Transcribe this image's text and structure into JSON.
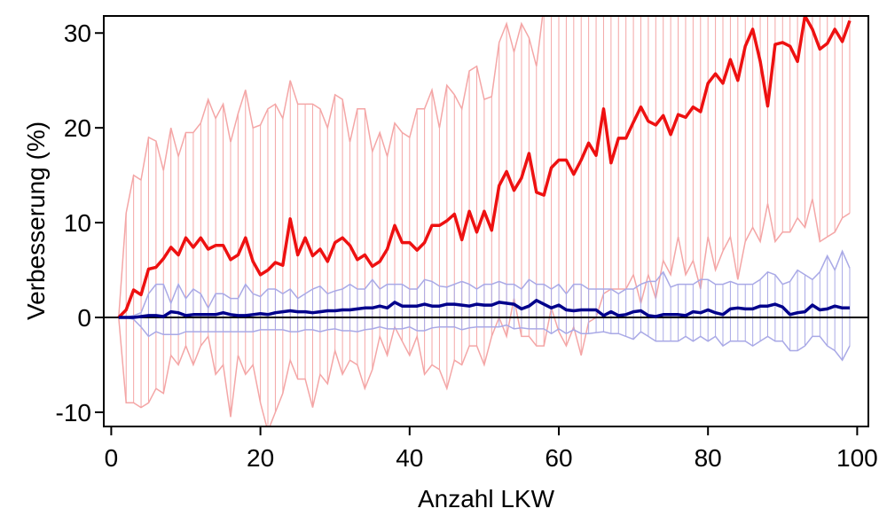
{
  "chart_data": {
    "type": "line",
    "title": "",
    "xlabel": "Anzahl LKW",
    "ylabel": "Verbesserung (%)",
    "xlim": [
      -1,
      101.5
    ],
    "ylim": [
      -11.5,
      31.8
    ],
    "xticks": [
      0,
      20,
      40,
      60,
      80,
      100
    ],
    "yticks": [
      -10,
      0,
      10,
      20,
      30
    ],
    "xtick_labels": [
      "0",
      "20",
      "40",
      "60",
      "80",
      "100"
    ],
    "ytick_labels": [
      "-10",
      "0",
      "10",
      "20",
      "30"
    ],
    "grid": false,
    "legend": "none",
    "reference_line_y": 0,
    "colors": {
      "red_line": "#ee1111",
      "red_band": "#f4a6a6",
      "blue_line": "#00008b",
      "blue_band": "#a9a9e6",
      "zero_line": "#000000"
    },
    "x_start": 1,
    "x_step": 1,
    "series": [
      {
        "values": [
          0,
          0.8,
          2.9,
          2.4,
          5.1,
          5.3,
          6.2,
          7.4,
          6.6,
          8.4,
          7.4,
          8.4,
          7.2,
          7.6,
          7.6,
          6.1,
          6.6,
          8.4,
          5.9,
          4.5,
          5.0,
          5.8,
          5.5,
          10.4,
          6.6,
          8.4,
          6.5,
          7.2,
          5.9,
          7.9,
          8.4,
          7.6,
          6.1,
          6.6,
          5.4,
          5.9,
          7.2,
          9.7,
          7.9,
          7.9,
          7.1,
          7.9,
          9.7,
          9.7,
          10.2,
          10.9,
          8.2,
          11.2,
          9.0,
          11.2,
          9.2,
          13.9,
          15.4,
          13.4,
          14.7,
          17.3,
          13.2,
          12.9,
          15.8,
          16.6,
          16.6,
          15.1,
          16.6,
          18.4,
          17.1,
          22.0,
          16.3,
          18.9,
          18.9,
          20.6,
          22.2,
          20.7,
          20.3,
          21.3,
          19.3,
          21.4,
          21.1,
          22.2,
          21.7,
          24.7,
          25.7,
          24.7,
          27.2,
          25.0,
          28.6,
          30.4,
          27.0,
          22.3,
          28.8,
          29.0,
          28.6,
          27.0,
          31.8,
          30.4,
          28.3,
          28.9,
          30.4,
          29.1,
          31.3
        ],
        "band_upper": [
          0,
          11,
          15,
          14.5,
          19,
          18.6,
          15.5,
          20,
          17,
          19.5,
          19.5,
          20.5,
          23,
          21,
          22.5,
          18.5,
          21.5,
          24,
          20,
          20.3,
          22,
          22.5,
          21,
          25,
          22.5,
          22.5,
          22.5,
          22,
          20,
          23.5,
          23,
          18.5,
          22,
          22,
          17.5,
          19.5,
          17,
          20.5,
          19.5,
          19,
          22,
          22,
          24,
          20,
          24.5,
          23.5,
          22,
          26,
          26.5,
          23,
          23.3,
          29,
          31,
          28,
          31,
          29.5,
          26.5,
          33,
          33,
          33,
          33,
          33,
          33,
          33,
          33,
          33,
          33,
          33,
          33,
          33,
          33,
          33,
          33,
          33,
          33,
          33,
          33,
          33,
          33,
          33,
          33,
          33,
          33,
          33,
          33,
          33,
          33,
          33,
          33,
          33,
          33,
          33,
          33,
          33,
          33,
          33,
          33,
          33,
          33
        ],
        "band_lower": [
          0,
          -9,
          -9,
          -9.5,
          -9,
          -7.5,
          -8,
          -4,
          -5,
          -3,
          -5,
          -3,
          -2,
          -6,
          -5,
          -10.5,
          -4,
          -6,
          -5,
          -9,
          -12,
          -10,
          -8,
          -4.5,
          -6.5,
          -6.5,
          -9.5,
          -6,
          -7,
          -3.5,
          -6,
          -4.5,
          -5,
          -7.5,
          -5.5,
          -2,
          -4,
          -1,
          -2.5,
          -4,
          -2,
          -6,
          -5,
          -5.5,
          -7.5,
          -4.5,
          -5,
          -3,
          -3,
          -5,
          -2,
          0,
          -2,
          2,
          -2,
          -2,
          -3,
          -3,
          1,
          -1.5,
          -3,
          -1,
          -4,
          -0.5,
          0,
          2.5,
          3,
          3,
          3,
          4.5,
          1.5,
          4.5,
          2,
          6,
          4.5,
          8.5,
          4.5,
          6,
          3,
          8.5,
          5,
          7,
          8.5,
          4,
          8,
          9.5,
          8,
          12,
          8,
          9,
          9,
          10.5,
          9.5,
          12.5,
          8,
          8.5,
          9,
          10.5,
          11
        ]
      },
      {
        "values": [
          0,
          0,
          0,
          0.1,
          0.2,
          0.2,
          0.1,
          0.6,
          0.5,
          0.2,
          0.3,
          0.3,
          0.3,
          0.3,
          0.5,
          0.3,
          0.2,
          0.2,
          0.3,
          0.4,
          0.3,
          0.5,
          0.6,
          0.7,
          0.6,
          0.6,
          0.5,
          0.6,
          0.7,
          0.7,
          0.8,
          0.8,
          0.9,
          1.0,
          1.0,
          1.2,
          1.0,
          1.6,
          1.2,
          1.2,
          1.2,
          1.4,
          1.2,
          1.2,
          1.4,
          1.4,
          1.3,
          1.2,
          1.4,
          1.3,
          1.3,
          1.6,
          1.5,
          1.4,
          0.9,
          1.2,
          1.8,
          1.4,
          1.0,
          1.3,
          0.8,
          0.7,
          0.8,
          0.8,
          0.8,
          0.2,
          0.6,
          0.2,
          0.3,
          0.6,
          0.7,
          0.2,
          0.1,
          0.3,
          0.3,
          0.3,
          0.2,
          0.6,
          0.5,
          0.8,
          0.5,
          0.3,
          0.9,
          1.0,
          0.9,
          0.9,
          1.2,
          1.2,
          1.4,
          1.1,
          0.3,
          0.5,
          0.6,
          1.3,
          0.8,
          0.9,
          1.2,
          1.0,
          1.0
        ],
        "band_upper": [
          0,
          0,
          0.2,
          0.5,
          2.5,
          3.5,
          3.5,
          1.5,
          3.5,
          2,
          3,
          2.5,
          1,
          2.5,
          2.5,
          2,
          2,
          3.5,
          2.5,
          2.2,
          3,
          3,
          2.5,
          3,
          2,
          2.5,
          3,
          3.3,
          2.5,
          2.8,
          3,
          3.5,
          3,
          3,
          4,
          3,
          3.5,
          3.5,
          3.5,
          3,
          3,
          4,
          3.8,
          3.3,
          3.2,
          3.5,
          3.8,
          3.5,
          3,
          3.5,
          3.5,
          3.8,
          3.5,
          3.5,
          3,
          4,
          3.5,
          3.5,
          3,
          3.5,
          2.5,
          3.5,
          3.5,
          3,
          3,
          3,
          3,
          2.5,
          3,
          3,
          3.5,
          3.8,
          3.8,
          4.8,
          3.2,
          3.5,
          3.5,
          3.5,
          4,
          4,
          3.5,
          3.5,
          3.8,
          3.5,
          3.5,
          3.5,
          4,
          4.8,
          4.5,
          3.5,
          3.8,
          5,
          4.5,
          4,
          4.8,
          6.5,
          5,
          7,
          5.2
        ],
        "band_lower": [
          0,
          0,
          -0.2,
          -1,
          -2,
          -1.5,
          -1.8,
          -1.8,
          -1.8,
          -1.5,
          -1.5,
          -1.5,
          -1.5,
          -1.5,
          -1.5,
          -1.5,
          -1.5,
          -1.5,
          -1.5,
          -1.3,
          -1.3,
          -1.3,
          -1.3,
          -1.5,
          -1.5,
          -1.3,
          -1.3,
          -1.5,
          -1.3,
          -1.2,
          -1.4,
          -1.4,
          -1.5,
          -1.3,
          -1.2,
          -1,
          -1.2,
          -1.2,
          -1.2,
          -1,
          -1.4,
          -1.4,
          -1.1,
          -1,
          -1,
          -1,
          -1.3,
          -1.1,
          -1,
          -1,
          -1,
          -1,
          -0.8,
          -1.2,
          -1.1,
          -1.2,
          -1.2,
          -1.2,
          -1.7,
          -1.2,
          -1.7,
          -1.3,
          -1.7,
          -1.7,
          -1.6,
          -1.5,
          -1.7,
          -1.7,
          -2,
          -2.3,
          -1.5,
          -2,
          -2.5,
          -2.5,
          -2.5,
          -2.5,
          -2,
          -2.5,
          -2,
          -2.5,
          -2,
          -3,
          -2.5,
          -2.5,
          -2.5,
          -3,
          -2.5,
          -2,
          -2.5,
          -2.5,
          -3.5,
          -3.5,
          -3,
          -2,
          -2,
          -3,
          -3.5,
          -4.5,
          -3
        ]
      }
    ]
  }
}
